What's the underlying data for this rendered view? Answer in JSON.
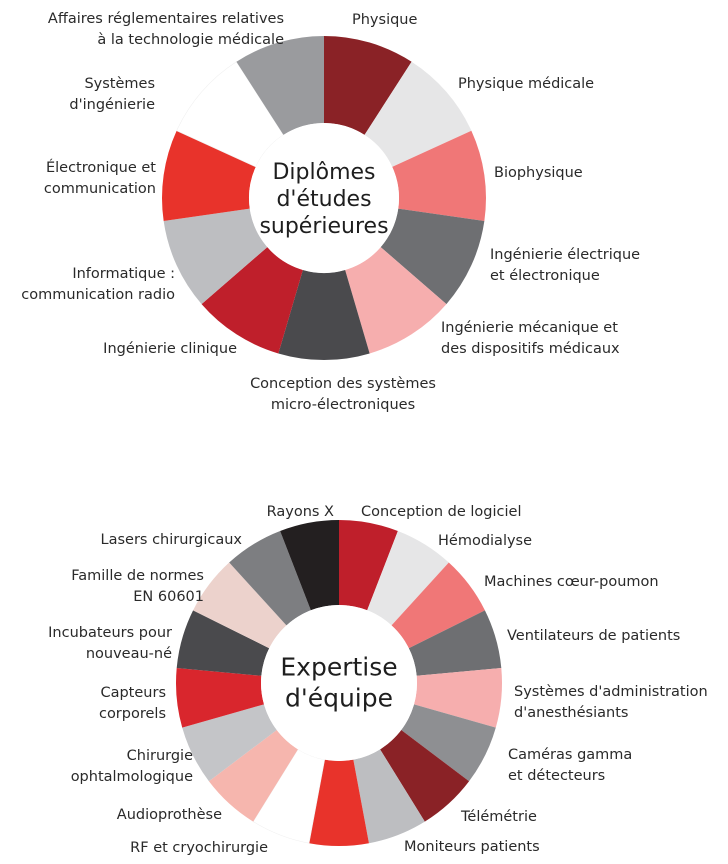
{
  "diagrams": [
    {
      "center_lines": [
        "Diplômes",
        "d'études",
        "supérieures"
      ],
      "segments": [
        {
          "label_lines": [
            "Physique"
          ],
          "color": "#8a2226"
        },
        {
          "label_lines": [
            "Physique médicale"
          ],
          "color": "#e6e6e7"
        },
        {
          "label_lines": [
            "Biophysique"
          ],
          "color": "#f07777"
        },
        {
          "label_lines": [
            "Ingénierie électrique",
            "et électronique"
          ],
          "color": "#6e6f72"
        },
        {
          "label_lines": [
            "Ingénierie mécanique et",
            "des dispositifs médicaux"
          ],
          "color": "#f6aeae"
        },
        {
          "label_lines": [
            "Conception des systèmes",
            "micro-électroniques"
          ],
          "color": "#4a4a4d"
        },
        {
          "label_lines": [
            "Ingénierie clinique"
          ],
          "color": "#bf1f2b"
        },
        {
          "label_lines": [
            "Informatique :",
            "communication radio"
          ],
          "color": "#bdbec1"
        },
        {
          "label_lines": [
            "Électronique et",
            "communication"
          ],
          "color": "#e8332b"
        },
        {
          "label_lines": [
            "Systèmes",
            "d'ingénierie"
          ],
          "color": "#ffffff"
        },
        {
          "label_lines": [
            "Affaires réglementaires relatives",
            "à la technologie médicale"
          ],
          "color": "#9a9b9e"
        }
      ]
    },
    {
      "center_lines": [
        "Expertise",
        "d'équipe"
      ],
      "segments": [
        {
          "label_lines": [
            "Conception de logiciel"
          ],
          "color": "#bf1f2b"
        },
        {
          "label_lines": [
            "Hémodialyse"
          ],
          "color": "#e6e6e7"
        },
        {
          "label_lines": [
            "Machines cœur-poumon"
          ],
          "color": "#f07777"
        },
        {
          "label_lines": [
            "Ventilateurs de patients"
          ],
          "color": "#6e6f72"
        },
        {
          "label_lines": [
            "Systèmes d'administration",
            "d'anesthésiants"
          ],
          "color": "#f6aeae"
        },
        {
          "label_lines": [
            "Caméras gamma",
            "et détecteurs"
          ],
          "color": "#8e8f92"
        },
        {
          "label_lines": [
            "Télémétrie"
          ],
          "color": "#8a2226"
        },
        {
          "label_lines": [
            "Moniteurs patients"
          ],
          "color": "#bdbec1"
        },
        {
          "label_lines": [
            "—"
          ],
          "color": "#e8332b"
        },
        {
          "label_lines": [
            "RF et cryochirurgie"
          ],
          "color": "#ffffff"
        },
        {
          "label_lines": [
            "Audioprothèse"
          ],
          "color": "#f6b6ae"
        },
        {
          "label_lines": [
            "Chirurgie",
            "ophtalmologique"
          ],
          "color": "#c4c5c8"
        },
        {
          "label_lines": [
            "Capteurs",
            "corporels"
          ],
          "color": "#d9262d"
        },
        {
          "label_lines": [
            "Incubateurs pour",
            "nouveau-né"
          ],
          "color": "#4a4a4d"
        },
        {
          "label_lines": [
            "Famille de normes",
            "EN 60601"
          ],
          "color": "#ecd2cc"
        },
        {
          "label_lines": [
            "Lasers chirurgicaux"
          ],
          "color": "#7d7e81"
        },
        {
          "label_lines": [
            "Rayons X"
          ],
          "color": "#231f20"
        }
      ]
    }
  ]
}
